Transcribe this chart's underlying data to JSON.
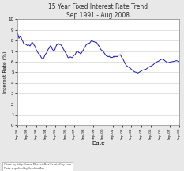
{
  "title_line1": "15 Year Fixed Interest Rate Trend",
  "title_line2": "Sep 1991 - Aug 2008",
  "xlabel": "Date",
  "ylabel": "Interest Rate (%)",
  "footnote_line1": "Chart by http://www.PhoenixRealEstateGuy.com",
  "footnote_line2": "Data supplied by FreddieMac",
  "ylim": [
    0,
    10
  ],
  "yticks": [
    0,
    1,
    2,
    3,
    4,
    5,
    6,
    7,
    8,
    9,
    10
  ],
  "line_color": "#1a1aaa",
  "bg_color": "#e8e8e8",
  "plot_bg_color": "#ffffff",
  "xtick_labels": [
    "Sep-91",
    "Sep-92",
    "Sep-93",
    "Sep-94",
    "Sep-95",
    "Sep-96",
    "Sep-97",
    "Sep-98",
    "Sep-99",
    "Sep-00",
    "Sep-01",
    "Sep-02",
    "Sep-03",
    "Sep-04",
    "Sep-05",
    "Sep-06",
    "Sep-07",
    "Sep-08"
  ],
  "values": [
    8.74,
    8.55,
    8.21,
    8.34,
    8.38,
    8.1,
    7.96,
    7.75,
    7.71,
    7.65,
    7.62,
    7.53,
    7.56,
    7.57,
    7.49,
    7.63,
    7.82,
    7.79,
    7.62,
    7.5,
    7.28,
    7.07,
    6.94,
    6.79,
    6.71,
    6.61,
    6.43,
    6.31,
    6.26,
    6.37,
    6.6,
    6.75,
    6.84,
    7.02,
    7.22,
    7.3,
    7.5,
    7.43,
    7.21,
    7.1,
    7.03,
    7.15,
    7.4,
    7.62,
    7.62,
    7.72,
    7.62,
    7.66,
    7.52,
    7.42,
    7.23,
    7.09,
    6.94,
    6.78,
    6.65,
    6.43,
    6.35,
    6.42,
    6.46,
    6.4,
    6.39,
    6.52,
    6.62,
    6.67,
    6.86,
    7.0,
    6.96,
    6.86,
    6.83,
    6.73,
    6.84,
    7.0,
    7.13,
    7.3,
    7.42,
    7.6,
    7.65,
    7.76,
    7.72,
    7.78,
    7.91,
    8.0,
    7.94,
    7.9,
    7.88,
    7.82,
    7.84,
    7.73,
    7.56,
    7.47,
    7.28,
    7.15,
    7.07,
    7.03,
    6.9,
    6.78,
    6.65,
    6.55,
    6.53,
    6.47,
    6.52,
    6.43,
    6.38,
    6.41,
    6.42,
    6.51,
    6.42,
    6.51,
    6.49,
    6.49,
    6.6,
    6.63,
    6.67,
    6.52,
    6.36,
    6.25,
    6.07,
    5.88,
    5.73,
    5.62,
    5.56,
    5.5,
    5.45,
    5.38,
    5.29,
    5.22,
    5.14,
    5.08,
    5.02,
    5.02,
    4.96,
    4.93,
    4.97,
    5.03,
    5.08,
    5.13,
    5.19,
    5.22,
    5.25,
    5.25,
    5.29,
    5.37,
    5.43,
    5.5,
    5.55,
    5.57,
    5.62,
    5.67,
    5.73,
    5.82,
    5.91,
    5.93,
    5.99,
    6.03,
    6.07,
    6.13,
    6.2,
    6.24,
    6.24,
    6.2,
    6.13,
    6.05,
    5.98,
    5.92,
    5.9,
    5.93,
    5.96,
    5.98,
    6.0,
    6.01,
    6.03,
    6.05,
    6.08,
    6.1,
    6.08,
    6.05,
    6.01
  ]
}
